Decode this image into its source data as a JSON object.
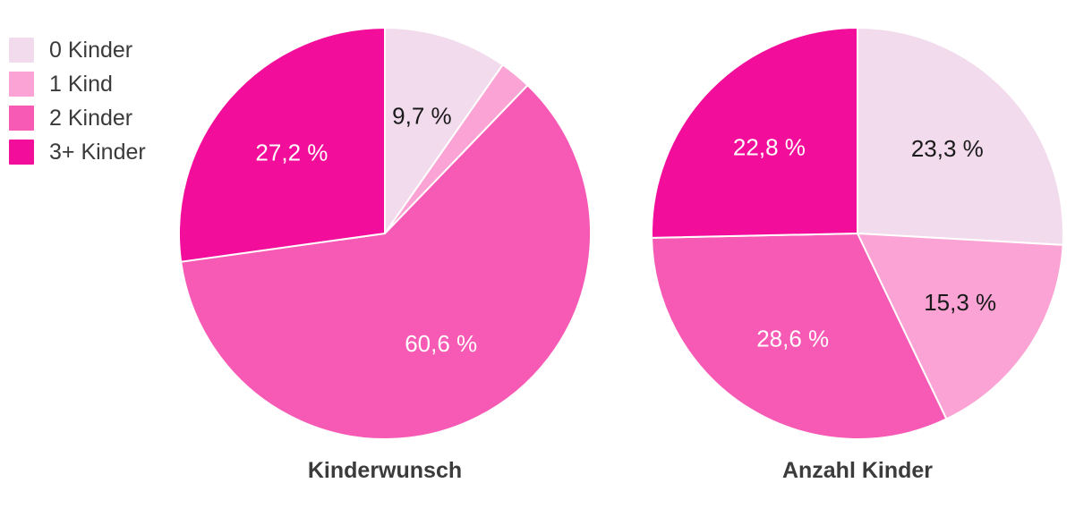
{
  "background_color": "#ffffff",
  "slice_border_color": "#ffffff",
  "text_colors": {
    "heading": "#3b3b3b",
    "legend": "#3a3a3a",
    "label_dark": "#1a1a1a",
    "label_light": "#ffffff"
  },
  "palette": {
    "kinder_0": "#f2dbed",
    "kinder_1": "#fba3d4",
    "kinder_2": "#f65ab4",
    "kinder_3plus": "#f20d9b"
  },
  "legend": {
    "position": "top-left",
    "items": [
      {
        "label": "0 Kinder",
        "color": "#f2dbed"
      },
      {
        "label": "1 Kind",
        "color": "#fba3d4"
      },
      {
        "label": "2 Kinder",
        "color": "#f65ab4"
      },
      {
        "label": "3+ Kinder",
        "color": "#f20d9b"
      }
    ]
  },
  "chart_data": [
    {
      "type": "pie",
      "title": "Kinderwunsch",
      "start_angle_deg": 0,
      "direction": "clockwise",
      "labels_inside": true,
      "label_radius_fraction": 0.6,
      "slices": [
        {
          "category": "0 Kinder",
          "value": 9.7,
          "label": "9,7 %",
          "label_color": "#1a1a1a",
          "color": "#f2dbed"
        },
        {
          "category": "1 Kind",
          "value": 2.5,
          "label": "",
          "label_color": "",
          "color": "#fba3d4"
        },
        {
          "category": "2 Kinder",
          "value": 60.6,
          "label": "60,6 %",
          "label_color": "#ffffff",
          "color": "#f65ab4"
        },
        {
          "category": "3+ Kinder",
          "value": 27.2,
          "label": "27,2 %",
          "label_color": "#ffffff",
          "color": "#f20d9b"
        }
      ]
    },
    {
      "type": "pie",
      "title": "Anzahl Kinder",
      "start_angle_deg": 0,
      "direction": "clockwise",
      "labels_inside": true,
      "label_radius_fraction": 0.6,
      "slices": [
        {
          "category": "0 Kinder",
          "value": 23.3,
          "label": "23,3 %",
          "label_color": "#1a1a1a",
          "color": "#f2dbed"
        },
        {
          "category": "1 Kind",
          "value": 15.3,
          "label": "15,3 %",
          "label_color": "#1a1a1a",
          "color": "#fba3d4"
        },
        {
          "category": "2 Kinder",
          "value": 28.6,
          "label": "28,6 %",
          "label_color": "#ffffff",
          "color": "#f65ab4"
        },
        {
          "category": "3+ Kinder",
          "value": 22.8,
          "label": "22,8 %",
          "label_color": "#ffffff",
          "color": "#f20d9b"
        }
      ]
    }
  ]
}
